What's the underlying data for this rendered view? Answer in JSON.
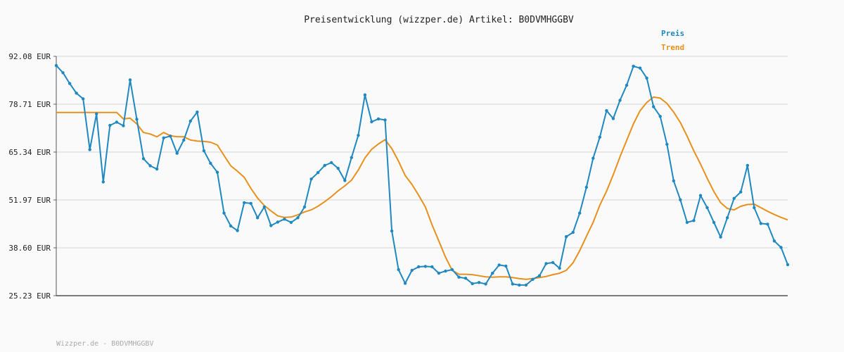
{
  "chart_data": {
    "type": "line",
    "title": "Preisentwicklung (wizzper.de) Artikel: B0DVMHGGBV",
    "footer": "Wizzper.de - B0DVMHGGBV",
    "ylim": [
      25.23,
      92.08
    ],
    "yticks": [
      "92.08 EUR",
      "78.71 EUR",
      "65.34 EUR",
      "51.97 EUR",
      "38.60 EUR",
      "25.23 EUR"
    ],
    "grid": true,
    "legend_position": "top-right",
    "series": [
      {
        "name": "Preis",
        "color": "#1f88c0",
        "markers": true,
        "values": [
          89.5,
          87.5,
          84.5,
          81.8,
          80.2,
          66.0,
          76.0,
          57.0,
          72.8,
          73.7,
          72.7,
          85.5,
          74.5,
          63.5,
          61.5,
          60.6,
          69.3,
          69.8,
          65.0,
          68.7,
          74.0,
          76.5,
          65.7,
          62.2,
          59.7,
          48.3,
          44.7,
          43.4,
          51.2,
          51.0,
          47.0,
          50.0,
          44.8,
          45.8,
          46.6,
          45.7,
          47.0,
          50.0,
          57.8,
          59.6,
          61.6,
          62.4,
          60.8,
          57.4,
          63.8,
          70.0,
          81.3,
          73.8,
          74.6,
          74.3,
          43.3,
          32.5,
          28.7,
          32.3,
          33.3,
          33.4,
          33.3,
          31.5,
          32.1,
          32.5,
          30.4,
          30.1,
          28.6,
          28.9,
          28.5,
          31.5,
          33.8,
          33.5,
          28.5,
          28.2,
          28.2,
          29.8,
          30.8,
          34.2,
          34.5,
          32.9,
          41.7,
          42.9,
          48.3,
          55.5,
          63.6,
          69.5,
          76.9,
          74.7,
          79.8,
          84.0,
          89.3,
          88.8,
          86.0,
          78.0,
          75.3,
          67.5,
          57.3,
          52.0,
          45.7,
          46.2,
          53.2,
          49.8,
          45.7,
          41.6,
          47.0,
          52.4,
          54.2,
          61.6,
          49.8,
          45.4,
          45.2,
          40.5,
          38.7,
          33.9
        ]
      },
      {
        "name": "Trend",
        "color": "#e8901c",
        "markers": false,
        "values": [
          76.4,
          76.4,
          76.4,
          76.4,
          76.4,
          76.4,
          76.4,
          76.4,
          76.4,
          76.4,
          74.6,
          74.8,
          73.2,
          70.8,
          70.4,
          69.6,
          70.8,
          69.9,
          69.6,
          69.6,
          68.7,
          68.4,
          68.3,
          68.1,
          67.3,
          64.4,
          61.5,
          60.0,
          58.3,
          55.2,
          52.5,
          50.4,
          48.9,
          47.5,
          47.1,
          47.2,
          47.8,
          48.6,
          49.2,
          50.2,
          51.5,
          52.9,
          54.5,
          55.9,
          57.5,
          60.3,
          63.7,
          66.1,
          67.6,
          68.8,
          66.3,
          62.8,
          58.8,
          56.3,
          53.3,
          50.0,
          45.0,
          40.5,
          36.0,
          32.3,
          31.2,
          31.2,
          31.1,
          30.8,
          30.5,
          30.4,
          30.5,
          30.5,
          30.3,
          30.0,
          29.8,
          30.0,
          30.3,
          30.6,
          31.1,
          31.5,
          32.3,
          34.4,
          37.8,
          41.8,
          45.7,
          50.5,
          54.4,
          59.0,
          64.0,
          68.6,
          73.2,
          76.9,
          79.2,
          80.7,
          80.4,
          78.9,
          76.5,
          73.6,
          69.8,
          65.7,
          62.0,
          58.0,
          54.3,
          51.2,
          49.6,
          49.2,
          50.2,
          50.7,
          50.8,
          49.8,
          48.8,
          47.9,
          47.1,
          46.4
        ]
      }
    ]
  }
}
